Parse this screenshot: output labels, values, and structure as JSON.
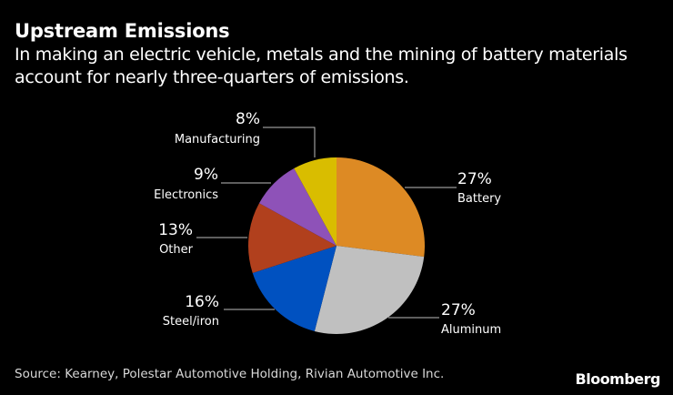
{
  "title": "Upstream Emissions",
  "subtitle": "In making an electric vehicle, metals and the mining of battery materials account for nearly three-quarters of emissions.",
  "source": "Source: Kearney, Polestar Automotive Holding, Rivian Automotive Inc.",
  "logo": "Bloomberg",
  "chart_data": {
    "type": "pie",
    "title": "Upstream Emissions",
    "slices": [
      {
        "label": "Battery",
        "value": 27,
        "display": "27%",
        "color": "#dd8a24"
      },
      {
        "label": "Aluminum",
        "value": 27,
        "display": "27%",
        "color": "#c0c0c0"
      },
      {
        "label": "Steel/iron",
        "value": 16,
        "display": "16%",
        "color": "#0051c0"
      },
      {
        "label": "Other",
        "value": 13,
        "display": "13%",
        "color": "#b1401d"
      },
      {
        "label": "Electronics",
        "value": 9,
        "display": "9%",
        "color": "#8e52b8"
      },
      {
        "label": "Manufacturing",
        "value": 8,
        "display": "8%",
        "color": "#d9bd00"
      }
    ],
    "start_angle": "12 o'clock",
    "direction": "clockwise",
    "legend": "none"
  }
}
